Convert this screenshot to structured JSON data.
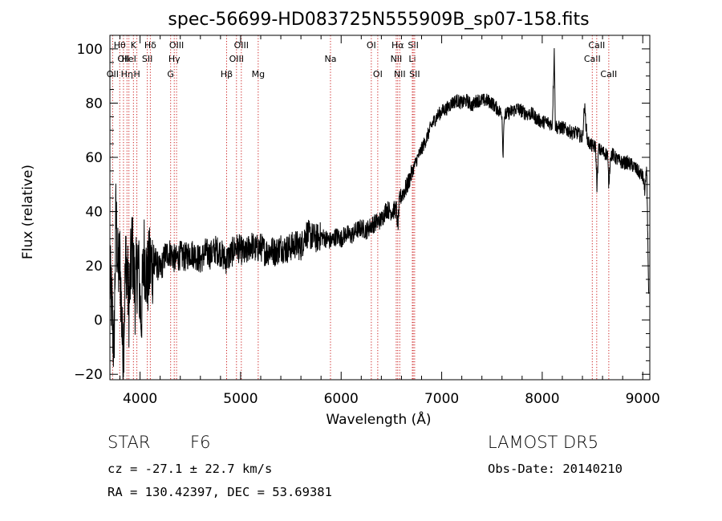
{
  "chart_data": {
    "type": "line",
    "title": "spec-56699-HD083725N555909B_sp07-158.fits",
    "xlabel": "Wavelength (Å)",
    "ylabel": "Flux (relative)",
    "xlim": [
      3700,
      9070
    ],
    "ylim": [
      -22,
      105
    ],
    "x_ticks": [
      4000,
      5000,
      6000,
      7000,
      8000,
      9000
    ],
    "y_ticks": [
      -20,
      0,
      20,
      40,
      60,
      80,
      100
    ],
    "x_tick_labels": [
      "4000",
      "5000",
      "6000",
      "7000",
      "8000",
      "9000"
    ],
    "y_tick_labels": [
      "−20",
      "0",
      "20",
      "40",
      "60",
      "80",
      "100"
    ],
    "grid": false,
    "series_color": "#000000",
    "line_color": "#cc2222",
    "spectrum": {
      "x": [
        3700,
        3720,
        3740,
        3760,
        3780,
        3800,
        3830,
        3860,
        3890,
        3920,
        3950,
        3980,
        4010,
        4040,
        4070,
        4100,
        4150,
        4200,
        4250,
        4300,
        4350,
        4400,
        4450,
        4500,
        4550,
        4600,
        4650,
        4700,
        4750,
        4800,
        4850,
        4900,
        4950,
        5000,
        5050,
        5100,
        5150,
        5200,
        5250,
        5300,
        5350,
        5400,
        5450,
        5500,
        5550,
        5600,
        5650,
        5700,
        5750,
        5800,
        5850,
        5900,
        5950,
        6000,
        6050,
        6100,
        6150,
        6200,
        6250,
        6300,
        6350,
        6400,
        6450,
        6500,
        6550,
        6563,
        6580,
        6600,
        6650,
        6700,
        6750,
        6800,
        6850,
        6900,
        6950,
        7000,
        7050,
        7100,
        7150,
        7200,
        7250,
        7300,
        7350,
        7400,
        7450,
        7500,
        7550,
        7600,
        7610,
        7620,
        7650,
        7700,
        7750,
        7800,
        7850,
        7900,
        7950,
        8000,
        8050,
        8100,
        8120,
        8130,
        8150,
        8200,
        8250,
        8300,
        8350,
        8400,
        8420,
        8450,
        8500,
        8530,
        8545,
        8560,
        8600,
        8650,
        8662,
        8680,
        8700,
        8750,
        8800,
        8850,
        8900,
        8950,
        9000,
        9020,
        9040,
        9060
      ],
      "y": [
        15,
        5,
        -12,
        40,
        18,
        22,
        -15,
        25,
        5,
        28,
        10,
        22,
        0,
        25,
        15,
        20,
        22,
        18,
        24,
        25,
        22,
        24,
        23,
        25,
        24,
        22,
        25,
        24,
        26,
        25,
        22,
        24,
        27,
        26,
        24,
        28,
        26,
        27,
        25,
        26,
        25,
        27,
        26,
        27,
        28,
        27,
        32,
        31,
        30,
        31,
        30,
        29,
        31,
        30,
        32,
        31,
        33,
        34,
        33,
        35,
        36,
        37,
        41,
        40,
        41,
        34,
        44,
        46,
        49,
        54,
        59,
        63,
        67,
        72,
        75,
        77,
        78,
        80,
        81,
        80,
        81,
        79,
        81,
        81,
        81,
        80,
        78,
        76,
        60,
        75,
        76,
        77,
        78,
        77,
        76,
        76,
        74,
        73,
        73,
        72,
        100,
        72,
        71,
        71,
        70,
        69,
        69,
        67,
        79,
        66,
        64,
        64,
        49,
        63,
        62,
        61,
        50,
        61,
        61,
        59,
        58,
        58,
        57,
        55,
        53,
        48,
        55,
        7
      ]
    },
    "lines": [
      {
        "wl": 3727,
        "label": "OII",
        "row": 2
      },
      {
        "wl": 3798,
        "label": "Hθ",
        "row": 0
      },
      {
        "wl": 3835,
        "label": "OII",
        "row": 1
      },
      {
        "wl": 3870,
        "label": "Hη",
        "row": 2
      },
      {
        "wl": 3889,
        "label": "HeI",
        "row": 1
      },
      {
        "wl": 3934,
        "label": "K",
        "row": 0
      },
      {
        "wl": 3968,
        "label": "H",
        "row": 2
      },
      {
        "wl": 4072,
        "label": "SII",
        "row": 1
      },
      {
        "wl": 4102,
        "label": "Hδ",
        "row": 0
      },
      {
        "wl": 4304,
        "label": "G",
        "row": 2
      },
      {
        "wl": 4340,
        "label": "Hγ",
        "row": 1
      },
      {
        "wl": 4363,
        "label": "OIII",
        "row": 0
      },
      {
        "wl": 4861,
        "label": "Hβ",
        "row": 2
      },
      {
        "wl": 4959,
        "label": "OIII",
        "row": 1
      },
      {
        "wl": 5007,
        "label": "OIII",
        "row": 0
      },
      {
        "wl": 5175,
        "label": "Mg",
        "row": 2
      },
      {
        "wl": 5894,
        "label": "Na",
        "row": 1
      },
      {
        "wl": 6300,
        "label": "OI",
        "row": 0
      },
      {
        "wl": 6364,
        "label": "OI",
        "row": 2
      },
      {
        "wl": 6548,
        "label": "NII",
        "row": 1
      },
      {
        "wl": 6563,
        "label": "Hα",
        "row": 0
      },
      {
        "wl": 6583,
        "label": "NII",
        "row": 2
      },
      {
        "wl": 6708,
        "label": "Li",
        "row": 1
      },
      {
        "wl": 6717,
        "label": "SII",
        "row": 0
      },
      {
        "wl": 6731,
        "label": "SII",
        "row": 2
      },
      {
        "wl": 8498,
        "label": "CaII",
        "row": 1
      },
      {
        "wl": 8542,
        "label": "CaII",
        "row": 0
      },
      {
        "wl": 8662,
        "label": "CaII",
        "row": 2
      }
    ]
  },
  "info": {
    "object_class": "STAR",
    "subclass": "F6",
    "survey": "LAMOST  DR5",
    "redshift": "cz = -27.1 ± 22.7 km/s",
    "obs_date": "Obs-Date: 20140210",
    "coords": "RA = 130.42397, DEC =  53.69381"
  }
}
